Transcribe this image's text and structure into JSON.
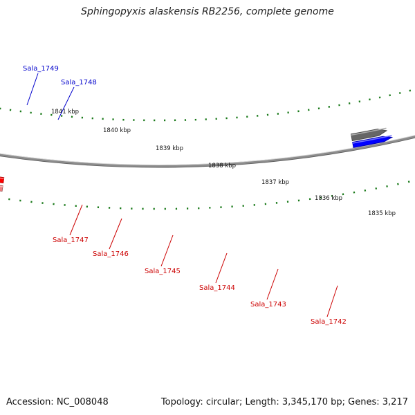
{
  "title": "Sphingopyxis alaskensis RB2256, complete genome",
  "footer": {
    "accession": "Accession: NC_008048",
    "topology": "Topology: circular; Length: 3,345,170 bp; Genes: 3,217"
  },
  "kbp_labels": [
    "1841 kbp",
    "1840 kbp",
    "1839 kbp",
    "1838 kbp",
    "1837 kbp",
    "1836 kbp",
    "1835 kbp"
  ],
  "colors": {
    "forward_label": "#0000cc",
    "reverse_label": "#cc0000",
    "backbone": "#8c8c8c",
    "tick": "#1a7a1a",
    "red": "#ff0000",
    "olive": "#6b8e23",
    "orange": "#ff8c00",
    "green": "#33cc33",
    "pink": "#f08080",
    "khaki": "#bdb76b",
    "blue": "#0000ff",
    "gray": "#666666"
  },
  "genes": [
    {
      "label": "Sala_1749",
      "strand": "forward",
      "color": "gray"
    },
    {
      "label": "Sala_1748",
      "strand": "forward",
      "color": "khaki"
    },
    {
      "label": "Sala_1747",
      "strand": "reverse",
      "color": "olive"
    },
    {
      "label": "Sala_1746",
      "strand": "reverse",
      "color": "red"
    },
    {
      "label": "Sala_1745",
      "strand": "reverse",
      "color": "olive"
    },
    {
      "label": "Sala_1744",
      "strand": "reverse",
      "color": "green"
    },
    {
      "label": "Sala_1743",
      "strand": "reverse",
      "color": "orange"
    },
    {
      "label": "Sala_1742",
      "strand": "reverse",
      "color": "pink"
    }
  ]
}
